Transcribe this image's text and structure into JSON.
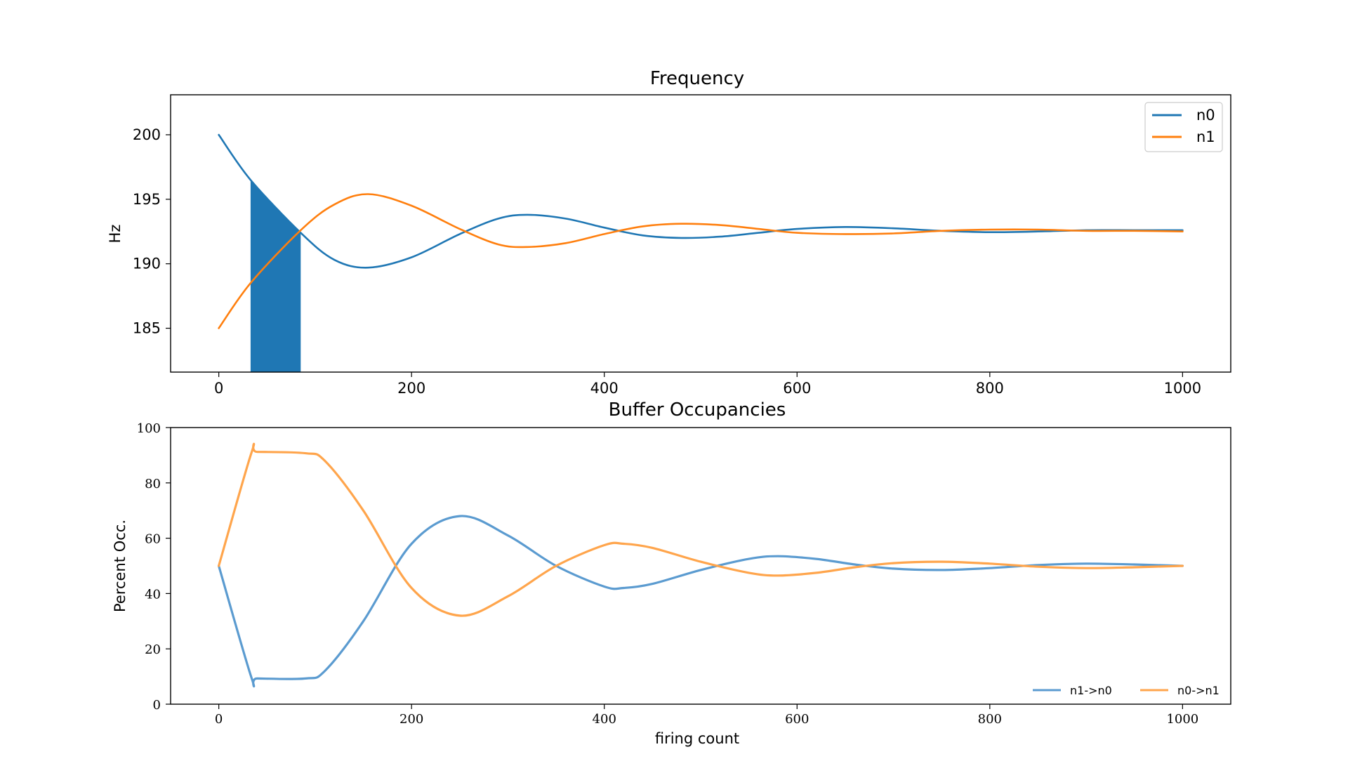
{
  "chart_data": [
    {
      "type": "line",
      "title": "Frequency",
      "xlabel": "",
      "ylabel": "Hz",
      "xlim": [
        -50,
        1050
      ],
      "ylim": [
        181.6,
        203.1
      ],
      "xticks": [
        0,
        200,
        400,
        600,
        800,
        1000
      ],
      "yticks": [
        185,
        190,
        195,
        200
      ],
      "legend": "top-right",
      "shaded_region": {
        "x_start": 33,
        "x_end": 85,
        "color": "#1f77b4"
      },
      "series": [
        {
          "name": "n0",
          "color": "#1f77b4",
          "x": [
            0,
            33,
            85,
            120,
            155,
            200,
            250,
            290,
            320,
            360,
            400,
            440,
            480,
            520,
            560,
            600,
            650,
            700,
            750,
            800,
            850,
            900,
            950,
            1000
          ],
          "y": [
            200,
            196.5,
            192.4,
            190.3,
            189.7,
            190.5,
            192.3,
            193.5,
            193.8,
            193.5,
            192.8,
            192.2,
            192.0,
            192.1,
            192.4,
            192.7,
            192.85,
            192.75,
            192.55,
            192.45,
            192.5,
            192.6,
            192.6,
            192.6
          ]
        },
        {
          "name": "n1",
          "color": "#ff7f0e",
          "x": [
            0,
            33,
            85,
            120,
            155,
            200,
            250,
            290,
            320,
            360,
            400,
            440,
            480,
            520,
            560,
            600,
            650,
            700,
            750,
            800,
            850,
            900,
            950,
            1000
          ],
          "y": [
            185,
            188.5,
            192.6,
            194.6,
            195.4,
            194.5,
            192.7,
            191.5,
            191.3,
            191.6,
            192.3,
            192.9,
            193.1,
            193.0,
            192.7,
            192.4,
            192.3,
            192.35,
            192.55,
            192.65,
            192.65,
            192.55,
            192.55,
            192.5
          ]
        }
      ]
    },
    {
      "type": "line",
      "title": "Buffer Occupancies",
      "xlabel": "firing count",
      "ylabel": "Percent Occ.",
      "xlim": [
        -50,
        1050
      ],
      "ylim": [
        0,
        100
      ],
      "xticks": [
        0,
        200,
        400,
        600,
        800,
        1000
      ],
      "yticks": [
        0,
        20,
        40,
        60,
        80,
        100
      ],
      "legend": "bottom-right",
      "series": [
        {
          "name": "n1->n0",
          "color": "#5b9bd0",
          "x": [
            0,
            34,
            40,
            90,
            110,
            150,
            200,
            250,
            300,
            350,
            400,
            420,
            450,
            500,
            550,
            580,
            620,
            660,
            700,
            750,
            800,
            850,
            900,
            950,
            1000
          ],
          "y": [
            50,
            9.5,
            9.3,
            9.3,
            12,
            30,
            58,
            68,
            61,
            50,
            42.5,
            42,
            43.5,
            48.5,
            52.5,
            53.5,
            52.5,
            50.5,
            49,
            48.5,
            49.2,
            50.3,
            50.8,
            50.5,
            50
          ]
        },
        {
          "name": "n0->n1",
          "color": "#ffa54c",
          "x": [
            0,
            34,
            40,
            90,
            110,
            150,
            200,
            250,
            300,
            350,
            400,
            420,
            450,
            500,
            550,
            580,
            620,
            660,
            700,
            750,
            800,
            850,
            900,
            950,
            1000
          ],
          "y": [
            50,
            91,
            91.2,
            90.7,
            88,
            70,
            42,
            32,
            39,
            50,
            57.5,
            58,
            56.5,
            51.5,
            47.5,
            46.5,
            47.5,
            49.5,
            51,
            51.5,
            50.8,
            49.7,
            49.2,
            49.5,
            50
          ]
        }
      ]
    }
  ]
}
